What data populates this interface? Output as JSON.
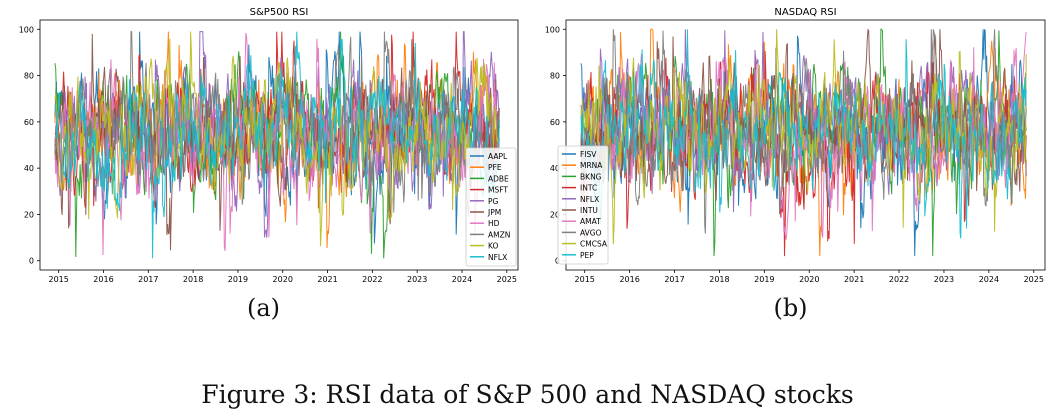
{
  "figure": {
    "caption": "Figure 3: RSI data of S&P 500 and NASDAQ stocks"
  },
  "chart_data": [
    {
      "type": "line",
      "title": "S&P500 RSI",
      "subcaption": "(a)",
      "xlabel": "",
      "ylabel": "",
      "x_ticks": [
        "2015",
        "2016",
        "2017",
        "2018",
        "2019",
        "2020",
        "2021",
        "2022",
        "2023",
        "2024",
        "2025"
      ],
      "y_ticks": [
        0,
        20,
        40,
        60,
        80,
        100
      ],
      "xlim": [
        "2014-08-01",
        "2025-04-01"
      ],
      "ylim": [
        -4,
        104
      ],
      "grid": false,
      "legend_position": "lower-right",
      "series_summary": {
        "x_range": [
          "2014-12-01",
          "2024-10-31"
        ],
        "value_range": [
          1,
          99
        ],
        "typical_range": [
          20,
          90
        ],
        "note": "dense overlapping daily RSI traces; individual values not legible"
      },
      "series": [
        {
          "name": "AAPL",
          "color": "#1f77b4"
        },
        {
          "name": "PFE",
          "color": "#ff7f0e"
        },
        {
          "name": "ADBE",
          "color": "#2ca02c"
        },
        {
          "name": "MSFT",
          "color": "#d62728"
        },
        {
          "name": "PG",
          "color": "#9467bd"
        },
        {
          "name": "JPM",
          "color": "#8c564b"
        },
        {
          "name": "HD",
          "color": "#e377c2"
        },
        {
          "name": "AMZN",
          "color": "#7f7f7f"
        },
        {
          "name": "KO",
          "color": "#bcbd22"
        },
        {
          "name": "NFLX",
          "color": "#17becf"
        }
      ]
    },
    {
      "type": "line",
      "title": "NASDAQ RSI",
      "subcaption": "(b)",
      "xlabel": "",
      "ylabel": "",
      "x_ticks": [
        "2015",
        "2016",
        "2017",
        "2018",
        "2019",
        "2020",
        "2021",
        "2022",
        "2023",
        "2024",
        "2025"
      ],
      "y_ticks": [
        0,
        20,
        40,
        60,
        80,
        100
      ],
      "xlim": [
        "2014-08-01",
        "2025-04-01"
      ],
      "ylim": [
        -4,
        104
      ],
      "grid": false,
      "legend_position": "center-left",
      "series_summary": {
        "x_range": [
          "2014-12-01",
          "2024-10-31"
        ],
        "value_range": [
          2,
          100
        ],
        "typical_range": [
          20,
          90
        ],
        "note": "dense overlapping daily RSI traces; individual values not legible"
      },
      "series": [
        {
          "name": "FISV",
          "color": "#1f77b4"
        },
        {
          "name": "MRNA",
          "color": "#ff7f0e"
        },
        {
          "name": "BKNG",
          "color": "#2ca02c"
        },
        {
          "name": "INTC",
          "color": "#d62728"
        },
        {
          "name": "NFLX",
          "color": "#9467bd"
        },
        {
          "name": "INTU",
          "color": "#8c564b"
        },
        {
          "name": "AMAT",
          "color": "#e377c2"
        },
        {
          "name": "AVGO",
          "color": "#7f7f7f"
        },
        {
          "name": "CMCSA",
          "color": "#bcbd22"
        },
        {
          "name": "PEP",
          "color": "#17becf"
        }
      ]
    }
  ]
}
